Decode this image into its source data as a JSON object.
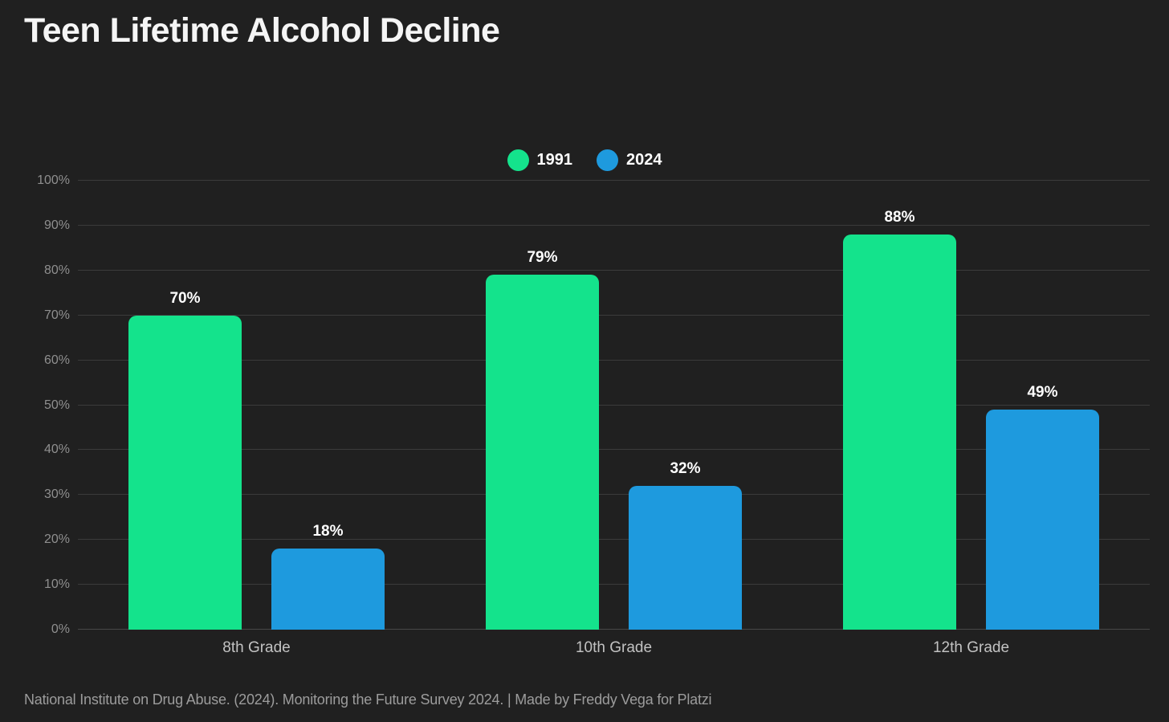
{
  "title": "Teen Lifetime Alcohol Decline",
  "footer": "National Institute on Drug Abuse. (2024). Monitoring the Future Survey 2024. | Made by Freddy Vega for Platzi",
  "colors": {
    "background": "#202020",
    "gridline": "#3b3b3b",
    "axis_text": "#8f8f8f",
    "category_text": "#c2c2c2",
    "value_label_text": "#ffffff",
    "series_1991": "#14e38c",
    "series_2024": "#1e9ade"
  },
  "chart_data": {
    "type": "bar",
    "categories": [
      "8th Grade",
      "10th Grade",
      "12th Grade"
    ],
    "series": [
      {
        "name": "1991",
        "color": "#14e38c",
        "values": [
          70,
          79,
          88
        ]
      },
      {
        "name": "2024",
        "color": "#1e9ade",
        "values": [
          18,
          32,
          49
        ]
      }
    ],
    "title": "Teen Lifetime Alcohol Decline",
    "xlabel": "",
    "ylabel": "",
    "ylim": [
      0,
      100
    ],
    "ytick_step": 10,
    "ytick_suffix": "%",
    "value_suffix": "%",
    "data_labels": true,
    "grid": "horizontal",
    "legend_position": "top-center"
  }
}
